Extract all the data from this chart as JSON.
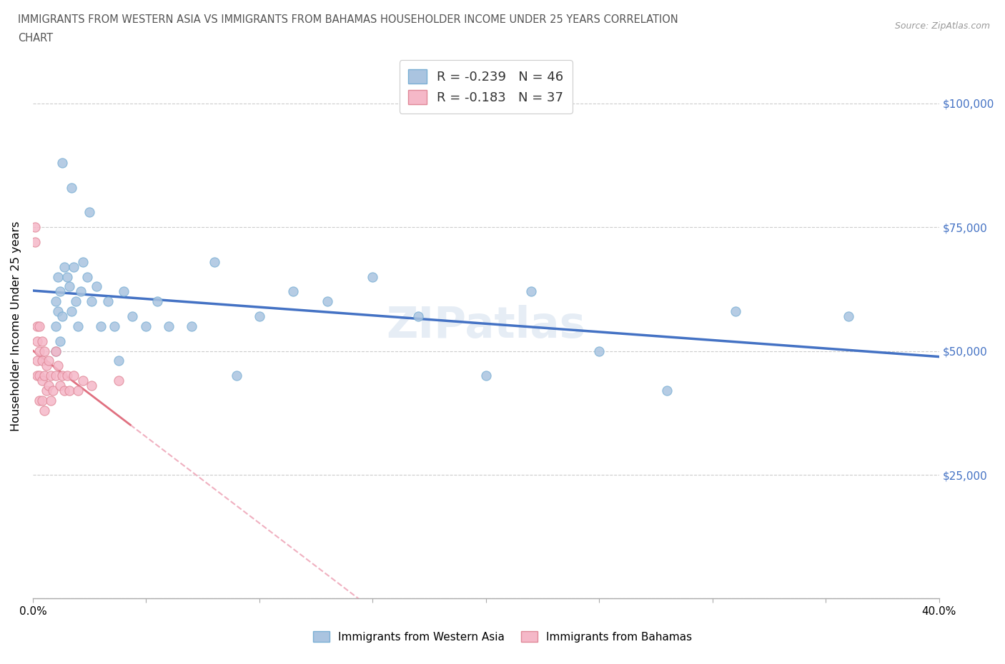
{
  "title_line1": "IMMIGRANTS FROM WESTERN ASIA VS IMMIGRANTS FROM BAHAMAS HOUSEHOLDER INCOME UNDER 25 YEARS CORRELATION",
  "title_line2": "CHART",
  "source": "Source: ZipAtlas.com",
  "ylabel": "Householder Income Under 25 years",
  "xlim": [
    0.0,
    0.4
  ],
  "ylim": [
    0,
    110000
  ],
  "yticks": [
    0,
    25000,
    50000,
    75000,
    100000
  ],
  "xticks": [
    0.0,
    0.05,
    0.1,
    0.15,
    0.2,
    0.25,
    0.3,
    0.35,
    0.4
  ],
  "series1_color": "#aac4e0",
  "series1_edge": "#7aafd4",
  "series2_color": "#f5b8c8",
  "series2_edge": "#e08898",
  "trendline1_color": "#4472c4",
  "trendline2_color": "#e07080",
  "trendline2_dash_color": "#f0b0c0",
  "R1": -0.239,
  "N1": 46,
  "R2": -0.183,
  "N2": 37,
  "grid_color": "#cccccc",
  "western_asia_x": [
    0.01,
    0.01,
    0.01,
    0.011,
    0.011,
    0.012,
    0.012,
    0.013,
    0.014,
    0.015,
    0.016,
    0.017,
    0.018,
    0.019,
    0.02,
    0.021,
    0.022,
    0.024,
    0.026,
    0.028,
    0.03,
    0.033,
    0.036,
    0.04,
    0.044,
    0.05,
    0.055,
    0.06,
    0.07,
    0.08,
    0.09,
    0.1,
    0.115,
    0.13,
    0.15,
    0.17,
    0.2,
    0.22,
    0.25,
    0.28,
    0.31,
    0.36,
    0.013,
    0.017,
    0.025,
    0.038
  ],
  "western_asia_y": [
    60000,
    55000,
    50000,
    65000,
    58000,
    62000,
    52000,
    57000,
    67000,
    65000,
    63000,
    58000,
    67000,
    60000,
    55000,
    62000,
    68000,
    65000,
    60000,
    63000,
    55000,
    60000,
    55000,
    62000,
    57000,
    55000,
    60000,
    55000,
    55000,
    68000,
    45000,
    57000,
    62000,
    60000,
    65000,
    57000,
    45000,
    62000,
    50000,
    42000,
    58000,
    57000,
    88000,
    83000,
    78000,
    48000
  ],
  "bahamas_x": [
    0.001,
    0.001,
    0.002,
    0.002,
    0.002,
    0.002,
    0.003,
    0.003,
    0.003,
    0.003,
    0.004,
    0.004,
    0.004,
    0.004,
    0.005,
    0.005,
    0.005,
    0.006,
    0.006,
    0.007,
    0.007,
    0.008,
    0.008,
    0.009,
    0.01,
    0.01,
    0.011,
    0.012,
    0.013,
    0.014,
    0.015,
    0.016,
    0.018,
    0.02,
    0.022,
    0.026,
    0.038
  ],
  "bahamas_y": [
    75000,
    72000,
    55000,
    52000,
    48000,
    45000,
    55000,
    50000,
    45000,
    40000,
    52000,
    48000,
    44000,
    40000,
    50000,
    45000,
    38000,
    47000,
    42000,
    48000,
    43000,
    45000,
    40000,
    42000,
    50000,
    45000,
    47000,
    43000,
    45000,
    42000,
    45000,
    42000,
    45000,
    42000,
    44000,
    43000,
    44000
  ]
}
